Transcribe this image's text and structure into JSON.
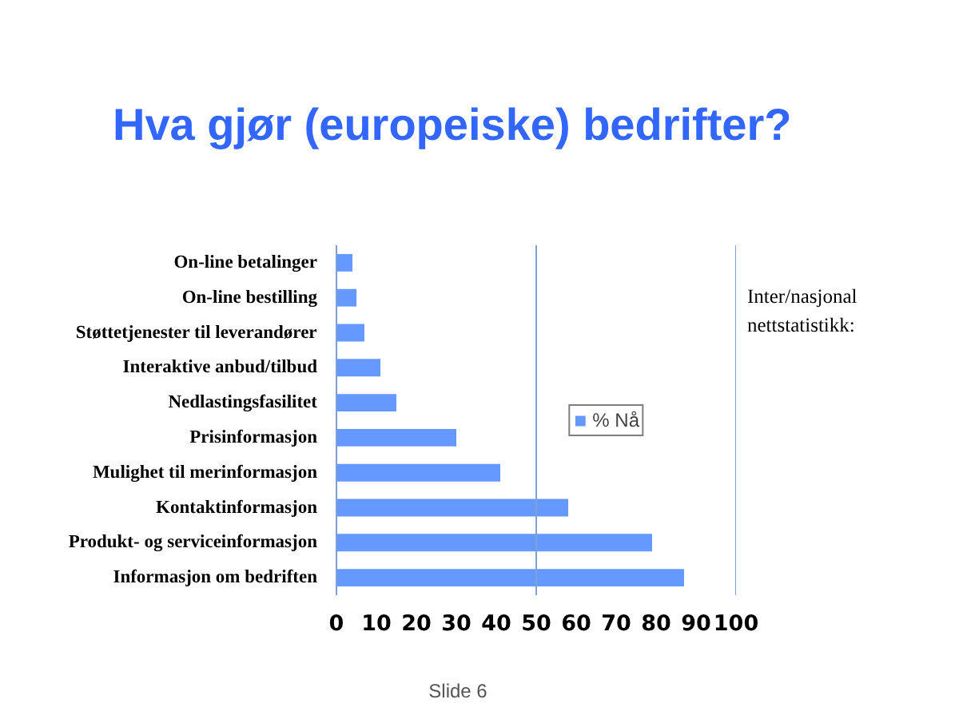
{
  "chart_data": {
    "type": "bar",
    "orientation": "horizontal",
    "title": "Hva gjør (europeiske) bedrifter?",
    "categories": [
      "On-line betalinger",
      "On-line bestilling",
      "Støttetjenester til leverandører",
      "Interaktive anbud/tilbud",
      "Nedlastingsfasilitet",
      "Prisinformasjon",
      "Mulighet til merinformasjon",
      "Kontaktinformasjon",
      "Produkt- og serviceinformasjon",
      "Informasjon om bedriften"
    ],
    "series": [
      {
        "name": "% Nå",
        "color": "#6699ff",
        "values": [
          4,
          5,
          7,
          11,
          15,
          30,
          41,
          58,
          79,
          87
        ]
      }
    ],
    "xlim": [
      0,
      100
    ],
    "xticks": [
      0,
      10,
      20,
      30,
      40,
      50,
      60,
      70,
      80,
      90,
      100
    ],
    "ref_lines": [
      {
        "axis": "x",
        "value": 50,
        "color": "#7f9fd8"
      },
      {
        "axis": "x",
        "value": 100,
        "color": "#7f9fd8"
      }
    ],
    "legend": "right",
    "annotations": [
      "Inter/nasjonal nettstatistikk:",
      "Slide 6"
    ]
  }
}
